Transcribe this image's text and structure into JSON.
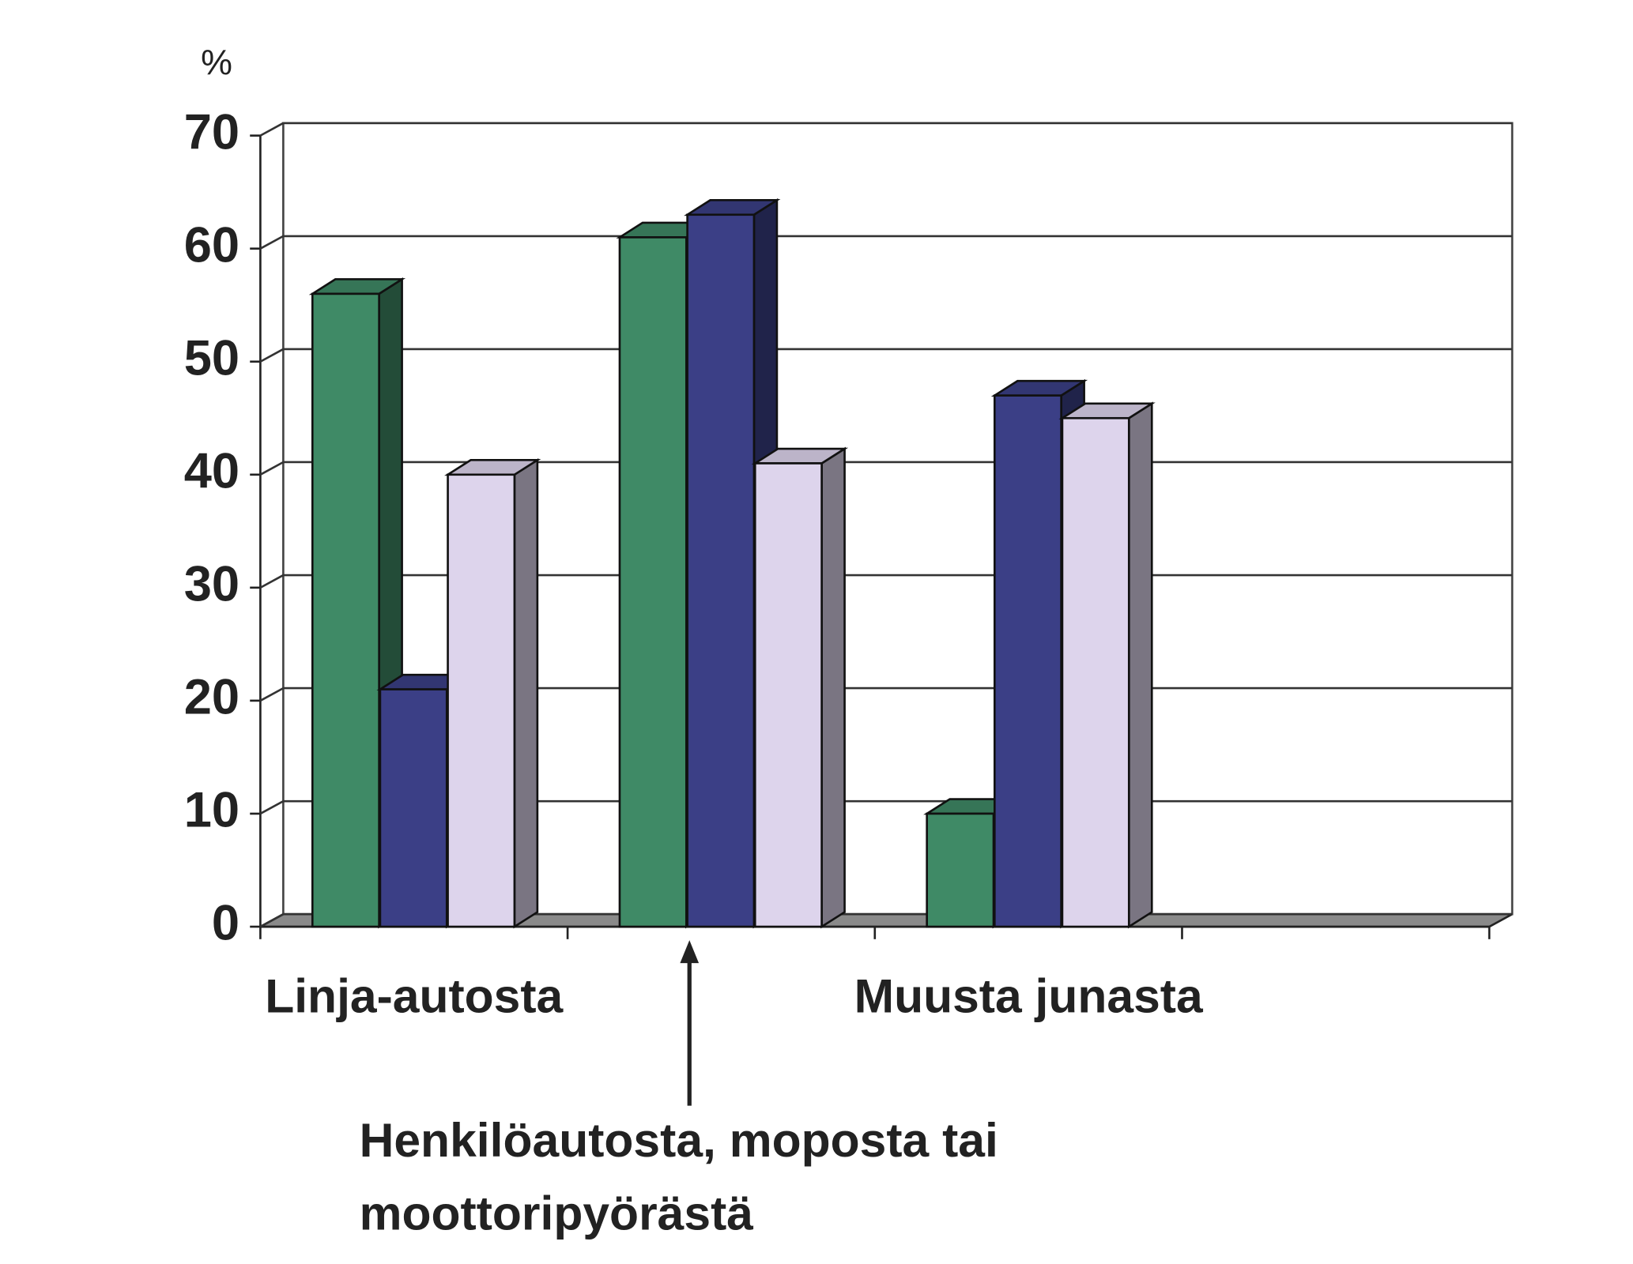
{
  "chart_data": {
    "type": "bar3d",
    "y_label": "%",
    "categories": [
      "Linja-autosta",
      "Henkilöautosta, moposta tai moottoripyörästä",
      "Muusta junasta",
      null
    ],
    "series": [
      {
        "color": "#3f8a66",
        "values": [
          56,
          61,
          10,
          null
        ]
      },
      {
        "color": "#3b3f86",
        "values": [
          21,
          63,
          47,
          null
        ]
      },
      {
        "color": "#ddd4ec",
        "values": [
          40,
          41,
          45,
          null
        ]
      }
    ],
    "ylim": [
      0,
      70
    ],
    "yticks": [
      0,
      10,
      20,
      30,
      40,
      50,
      60,
      70
    ],
    "grid": true
  }
}
